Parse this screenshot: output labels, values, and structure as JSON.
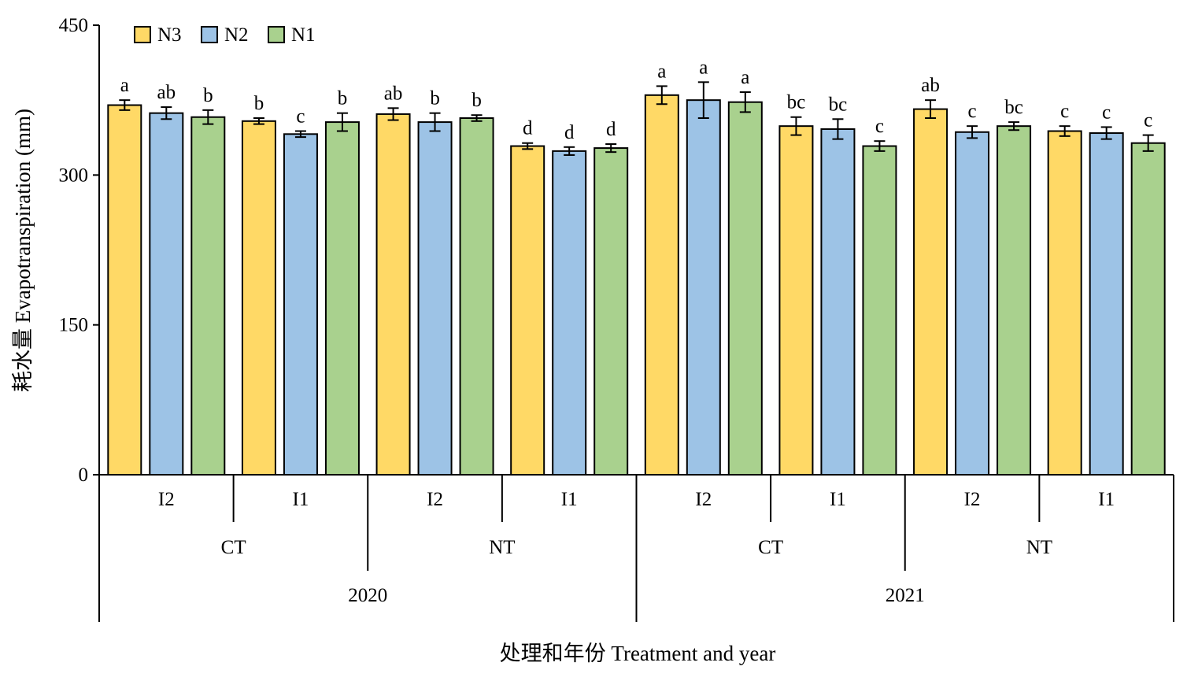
{
  "colors": {
    "N3": "#FFD966",
    "N2": "#9DC3E6",
    "N1": "#A9D18E",
    "axis": "#000000"
  },
  "chart_data": {
    "type": "bar",
    "title": "",
    "ylabel": "耗水量 Evapotranspiration (mm)",
    "xlabel": "处理和年份 Treatment and year",
    "ylim": [
      0,
      450
    ],
    "yticks": [
      "0",
      "150",
      "300",
      "450"
    ],
    "legend_position": "top-left",
    "categories": [
      {
        "level1": "I2",
        "level2": "CT",
        "level3": "2020"
      },
      {
        "level1": "I1",
        "level2": "CT",
        "level3": "2020"
      },
      {
        "level1": "I2",
        "level2": "NT",
        "level3": "2020"
      },
      {
        "level1": "I1",
        "level2": "NT",
        "level3": "2020"
      },
      {
        "level1": "I2",
        "level2": "CT",
        "level3": "2021"
      },
      {
        "level1": "I1",
        "level2": "CT",
        "level3": "2021"
      },
      {
        "level1": "I2",
        "level2": "NT",
        "level3": "2021"
      },
      {
        "level1": "I1",
        "level2": "NT",
        "level3": "2021"
      }
    ],
    "level2_labels": [
      "CT",
      "NT",
      "CT",
      "NT"
    ],
    "level3_labels": [
      "2020",
      "2021"
    ],
    "series": [
      {
        "name": "N3",
        "values": [
          370,
          354,
          361,
          329,
          380,
          349,
          366,
          344
        ],
        "errors": [
          5,
          3,
          6,
          3,
          9,
          9,
          9,
          5
        ],
        "letters": [
          "a",
          "b",
          "ab",
          "d",
          "a",
          "bc",
          "ab",
          "c"
        ]
      },
      {
        "name": "N2",
        "values": [
          362,
          341,
          353,
          324,
          375,
          346,
          343,
          342
        ],
        "errors": [
          6,
          3,
          9,
          4,
          18,
          10,
          6,
          6
        ],
        "letters": [
          "ab",
          "c",
          "b",
          "d",
          "a",
          "bc",
          "c",
          "c"
        ]
      },
      {
        "name": "N1",
        "values": [
          358,
          353,
          357,
          327,
          373,
          329,
          349,
          332
        ],
        "errors": [
          7,
          9,
          3,
          4,
          10,
          5,
          4,
          8
        ],
        "letters": [
          "b",
          "b",
          "b",
          "d",
          "a",
          "c",
          "bc",
          "c"
        ]
      }
    ]
  }
}
